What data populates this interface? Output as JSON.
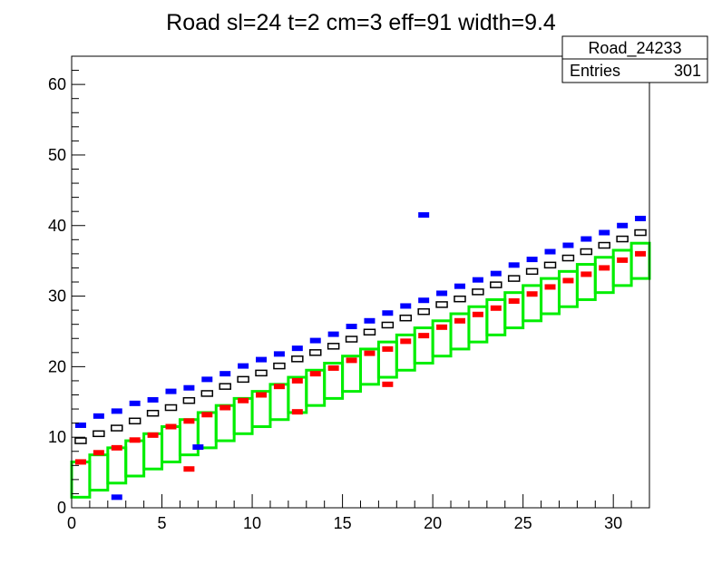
{
  "chart_data": {
    "type": "heatmap",
    "title": "Road sl=24 t=2 cm=3 eff=91 width=9.4",
    "xlabel": "",
    "ylabel": "",
    "xlim": [
      0,
      32
    ],
    "ylim": [
      0,
      64
    ],
    "x_ticks": [
      "0",
      "5",
      "10",
      "15",
      "20",
      "25",
      "30"
    ],
    "y_ticks": [
      "0",
      "10",
      "20",
      "30",
      "40",
      "50",
      "60"
    ],
    "stats_box": {
      "name": "Road_24233",
      "entries_label": "Entries",
      "entries_value": "301"
    },
    "road_band": {
      "color": "#00ee00",
      "x_bin_width": 1,
      "box_height": 5,
      "lower_edge_start": 1.5,
      "lower_edge_slope": 1.0
    },
    "series": [
      {
        "color": "#0000ff",
        "points": [
          [
            0.5,
            11.7
          ],
          [
            1.5,
            13.0
          ],
          [
            2.5,
            13.7
          ],
          [
            3.5,
            14.8
          ],
          [
            4.5,
            15.3
          ],
          [
            5.5,
            16.5
          ],
          [
            6.5,
            17.0
          ],
          [
            7.5,
            18.2
          ],
          [
            8.5,
            19.0
          ],
          [
            9.5,
            20.1
          ],
          [
            10.5,
            21.0
          ],
          [
            11.5,
            21.8
          ],
          [
            12.5,
            22.6
          ],
          [
            13.5,
            23.7
          ],
          [
            14.5,
            24.6
          ],
          [
            15.5,
            25.7
          ],
          [
            16.5,
            26.5
          ],
          [
            17.5,
            27.6
          ],
          [
            18.5,
            28.6
          ],
          [
            19.5,
            29.4
          ],
          [
            20.5,
            30.4
          ],
          [
            21.5,
            31.4
          ],
          [
            22.5,
            32.3
          ],
          [
            23.5,
            33.2
          ],
          [
            24.5,
            34.4
          ],
          [
            25.5,
            35.2
          ],
          [
            26.5,
            36.3
          ],
          [
            27.5,
            37.2
          ],
          [
            28.5,
            38.1
          ],
          [
            29.5,
            39.0
          ],
          [
            30.5,
            40.0
          ],
          [
            31.5,
            41.0
          ],
          [
            19.5,
            41.5
          ],
          [
            7.0,
            8.6
          ],
          [
            2.5,
            1.5
          ]
        ]
      },
      {
        "color": "#000000",
        "points": [
          [
            0.5,
            9.5
          ],
          [
            1.5,
            10.5
          ],
          [
            2.5,
            11.3
          ],
          [
            3.5,
            12.3
          ],
          [
            4.5,
            13.4
          ],
          [
            5.5,
            14.2
          ],
          [
            6.5,
            15.2
          ],
          [
            7.5,
            16.2
          ],
          [
            8.5,
            17.2
          ],
          [
            9.5,
            18.2
          ],
          [
            10.5,
            19.1
          ],
          [
            11.5,
            20.1
          ],
          [
            12.5,
            21.1
          ],
          [
            13.5,
            22.0
          ],
          [
            14.5,
            22.9
          ],
          [
            15.5,
            23.9
          ],
          [
            16.5,
            24.9
          ],
          [
            17.5,
            25.9
          ],
          [
            18.5,
            26.9
          ],
          [
            19.5,
            27.8
          ],
          [
            20.5,
            28.8
          ],
          [
            21.5,
            29.6
          ],
          [
            22.5,
            30.6
          ],
          [
            23.5,
            31.6
          ],
          [
            24.5,
            32.5
          ],
          [
            25.5,
            33.5
          ],
          [
            26.5,
            34.4
          ],
          [
            27.5,
            35.4
          ],
          [
            28.5,
            36.3
          ],
          [
            29.5,
            37.2
          ],
          [
            30.5,
            38.1
          ],
          [
            31.5,
            39.0
          ]
        ]
      },
      {
        "color": "#ff0000",
        "points": [
          [
            0.5,
            6.5
          ],
          [
            1.5,
            7.8
          ],
          [
            2.5,
            8.5
          ],
          [
            3.5,
            9.6
          ],
          [
            4.5,
            10.3
          ],
          [
            5.5,
            11.5
          ],
          [
            6.5,
            12.3
          ],
          [
            7.5,
            13.2
          ],
          [
            8.5,
            14.2
          ],
          [
            9.5,
            15.2
          ],
          [
            10.5,
            16.0
          ],
          [
            11.5,
            17.2
          ],
          [
            12.5,
            18.0
          ],
          [
            13.5,
            19.0
          ],
          [
            14.5,
            19.8
          ],
          [
            15.5,
            20.9
          ],
          [
            16.5,
            21.9
          ],
          [
            17.5,
            22.5
          ],
          [
            18.5,
            23.6
          ],
          [
            19.5,
            24.4
          ],
          [
            20.5,
            25.6
          ],
          [
            21.5,
            26.5
          ],
          [
            22.5,
            27.4
          ],
          [
            23.5,
            28.3
          ],
          [
            24.5,
            29.3
          ],
          [
            25.5,
            30.3
          ],
          [
            26.5,
            31.3
          ],
          [
            27.5,
            32.2
          ],
          [
            28.5,
            33.1
          ],
          [
            29.5,
            34.0
          ],
          [
            30.5,
            35.1
          ],
          [
            31.5,
            36.0
          ],
          [
            6.5,
            5.5
          ],
          [
            12.5,
            13.6
          ],
          [
            17.5,
            17.5
          ]
        ]
      }
    ]
  }
}
